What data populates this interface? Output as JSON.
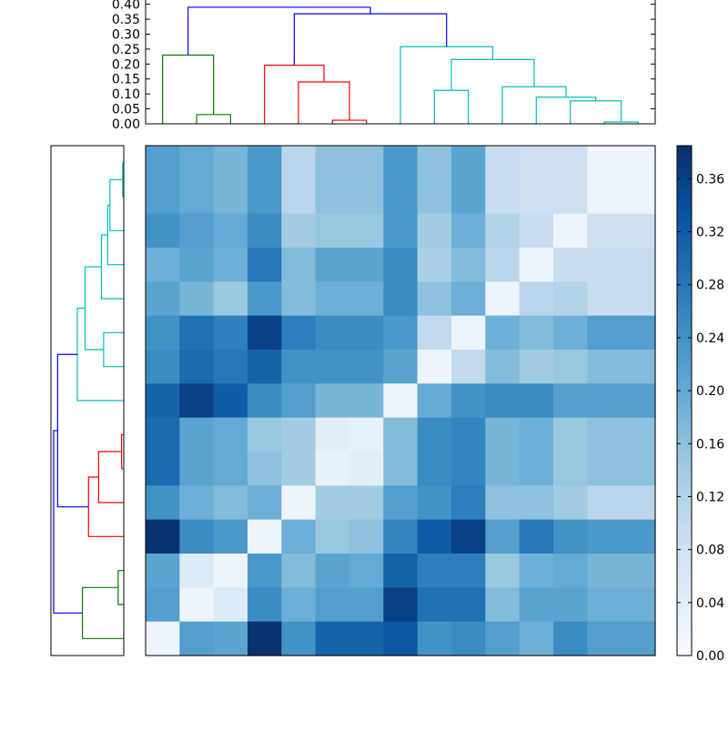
{
  "chart_data": {
    "type": "heatmap",
    "n": 15,
    "colormap": "Blues",
    "matrix": [
      [
        0.22,
        0.2,
        0.18,
        0.23,
        0.11,
        0.16,
        0.16,
        0.23,
        0.16,
        0.21,
        0.09,
        0.08,
        0.08,
        0.02,
        0.02
      ],
      [
        0.22,
        0.2,
        0.18,
        0.23,
        0.11,
        0.16,
        0.16,
        0.23,
        0.16,
        0.21,
        0.09,
        0.08,
        0.08,
        0.02,
        0.02
      ],
      [
        0.24,
        0.22,
        0.2,
        0.25,
        0.14,
        0.15,
        0.15,
        0.23,
        0.14,
        0.19,
        0.12,
        0.09,
        0.02,
        0.08,
        0.08
      ],
      [
        0.19,
        0.21,
        0.19,
        0.28,
        0.17,
        0.21,
        0.21,
        0.25,
        0.13,
        0.17,
        0.11,
        0.02,
        0.09,
        0.09,
        0.09
      ],
      [
        0.21,
        0.18,
        0.15,
        0.23,
        0.17,
        0.19,
        0.19,
        0.25,
        0.16,
        0.19,
        0.02,
        0.11,
        0.12,
        0.09,
        0.09
      ],
      [
        0.24,
        0.29,
        0.27,
        0.36,
        0.27,
        0.25,
        0.25,
        0.23,
        0.1,
        0.02,
        0.19,
        0.17,
        0.19,
        0.22,
        0.22
      ],
      [
        0.25,
        0.3,
        0.28,
        0.31,
        0.24,
        0.24,
        0.24,
        0.21,
        0.02,
        0.1,
        0.17,
        0.14,
        0.15,
        0.17,
        0.17
      ],
      [
        0.31,
        0.36,
        0.32,
        0.25,
        0.22,
        0.18,
        0.18,
        0.02,
        0.2,
        0.24,
        0.25,
        0.25,
        0.22,
        0.22,
        0.22
      ],
      [
        0.3,
        0.21,
        0.2,
        0.15,
        0.14,
        0.04,
        0.03,
        0.17,
        0.25,
        0.26,
        0.18,
        0.19,
        0.15,
        0.16,
        0.16
      ],
      [
        0.3,
        0.21,
        0.2,
        0.16,
        0.14,
        0.03,
        0.04,
        0.17,
        0.25,
        0.26,
        0.18,
        0.19,
        0.15,
        0.16,
        0.16
      ],
      [
        0.24,
        0.19,
        0.17,
        0.19,
        0.02,
        0.14,
        0.14,
        0.22,
        0.24,
        0.27,
        0.16,
        0.16,
        0.14,
        0.11,
        0.11
      ],
      [
        0.38,
        0.25,
        0.23,
        0.02,
        0.19,
        0.15,
        0.16,
        0.26,
        0.32,
        0.36,
        0.22,
        0.28,
        0.24,
        0.23,
        0.23
      ],
      [
        0.21,
        0.05,
        0.02,
        0.23,
        0.17,
        0.21,
        0.2,
        0.31,
        0.27,
        0.27,
        0.15,
        0.19,
        0.2,
        0.18,
        0.18
      ],
      [
        0.22,
        0.02,
        0.05,
        0.25,
        0.19,
        0.22,
        0.22,
        0.36,
        0.29,
        0.29,
        0.17,
        0.21,
        0.21,
        0.19,
        0.19
      ],
      [
        0.02,
        0.22,
        0.21,
        0.38,
        0.24,
        0.31,
        0.31,
        0.33,
        0.24,
        0.25,
        0.22,
        0.19,
        0.25,
        0.22,
        0.22
      ]
    ],
    "colorbar": {
      "min": 0.0,
      "max": 0.385,
      "ticks": [
        "0.00",
        "0.04",
        "0.08",
        "0.12",
        "0.16",
        "0.20",
        "0.24",
        "0.28",
        "0.32",
        "0.36"
      ]
    },
    "top_dendrogram": {
      "ylim": [
        0,
        0.405
      ],
      "yticks": [
        "0.00",
        "0.05",
        "0.10",
        "0.15",
        "0.20",
        "0.25",
        "0.30",
        "0.35",
        "0.40"
      ],
      "links": [
        {
          "left": 1.5,
          "right": 2.5,
          "h": 0.031,
          "lh": 0,
          "rh": 0,
          "color": "#008000"
        },
        {
          "left": 0.5,
          "right": 2.0,
          "h": 0.23,
          "lh": 0,
          "rh": 0.031,
          "color": "#008000"
        },
        {
          "left": 5.5,
          "right": 6.5,
          "h": 0.012,
          "lh": 0,
          "rh": 0,
          "color": "#ff0000"
        },
        {
          "left": 4.5,
          "right": 6.0,
          "h": 0.14,
          "lh": 0,
          "rh": 0.012,
          "color": "#ff0000"
        },
        {
          "left": 3.5,
          "right": 5.25,
          "h": 0.196,
          "lh": 0,
          "rh": 0.14,
          "color": "#ff0000"
        },
        {
          "left": 13.5,
          "right": 14.5,
          "h": 0.006,
          "lh": 0,
          "rh": 0,
          "color": "#00bfbf"
        },
        {
          "left": 12.5,
          "right": 14.0,
          "h": 0.077,
          "lh": 0,
          "rh": 0.006,
          "color": "#00bfbf"
        },
        {
          "left": 11.5,
          "right": 13.25,
          "h": 0.089,
          "lh": 0,
          "rh": 0.077,
          "color": "#00bfbf"
        },
        {
          "left": 10.5,
          "right": 12.375,
          "h": 0.124,
          "lh": 0,
          "rh": 0.089,
          "color": "#00bfbf"
        },
        {
          "left": 8.5,
          "right": 9.5,
          "h": 0.112,
          "lh": 0,
          "rh": 0,
          "color": "#00bfbf"
        },
        {
          "left": 9.0,
          "right": 11.4375,
          "h": 0.215,
          "lh": 0.112,
          "rh": 0.124,
          "color": "#00bfbf"
        },
        {
          "left": 7.5,
          "right": 10.21875,
          "h": 0.258,
          "lh": 0,
          "rh": 0.215,
          "color": "#00bfbf"
        },
        {
          "left": 4.375,
          "right": 8.859375,
          "h": 0.368,
          "lh": 0.196,
          "rh": 0.258,
          "color": "#0000ff"
        },
        {
          "left": 1.25,
          "right": 6.6171875,
          "h": 0.39,
          "lh": 0.23,
          "rh": 0.368,
          "color": "#0000ff"
        }
      ]
    },
    "left_dendrogram": {
      "xlim": [
        0,
        0.405
      ],
      "links": [
        {
          "left": 0.5,
          "right": 1.5,
          "h": 0.006,
          "lh": 0,
          "rh": 0,
          "color": "#00bfbf"
        },
        {
          "left": 1.0,
          "right": 2.5,
          "h": 0.077,
          "lh": 0.006,
          "rh": 0,
          "color": "#00bfbf"
        },
        {
          "left": 1.75,
          "right": 3.5,
          "h": 0.089,
          "lh": 0.077,
          "rh": 0,
          "color": "#00bfbf"
        },
        {
          "left": 2.625,
          "right": 4.5,
          "h": 0.124,
          "lh": 0.089,
          "rh": 0,
          "color": "#00bfbf"
        },
        {
          "left": 5.5,
          "right": 6.5,
          "h": 0.112,
          "lh": 0,
          "rh": 0,
          "color": "#00bfbf"
        },
        {
          "left": 3.5625,
          "right": 6.0,
          "h": 0.215,
          "lh": 0.124,
          "rh": 0.112,
          "color": "#00bfbf"
        },
        {
          "left": 4.78125,
          "right": 7.5,
          "h": 0.258,
          "lh": 0.215,
          "rh": 0,
          "color": "#00bfbf"
        },
        {
          "left": 8.5,
          "right": 9.5,
          "h": 0.012,
          "lh": 0,
          "rh": 0,
          "color": "#ff0000"
        },
        {
          "left": 9.0,
          "right": 10.5,
          "h": 0.14,
          "lh": 0.012,
          "rh": 0,
          "color": "#ff0000"
        },
        {
          "left": 9.75,
          "right": 11.5,
          "h": 0.196,
          "lh": 0.14,
          "rh": 0,
          "color": "#ff0000"
        },
        {
          "left": 6.140625,
          "right": 10.625,
          "h": 0.368,
          "lh": 0.258,
          "rh": 0.196,
          "color": "#0000ff"
        },
        {
          "left": 12.5,
          "right": 13.5,
          "h": 0.031,
          "lh": 0,
          "rh": 0,
          "color": "#008000"
        },
        {
          "left": 13.0,
          "right": 14.5,
          "h": 0.23,
          "lh": 0.031,
          "rh": 0,
          "color": "#008000"
        },
        {
          "left": 8.3828125,
          "right": 13.75,
          "h": 0.39,
          "lh": 0.368,
          "rh": 0.23,
          "color": "#0000ff"
        }
      ]
    }
  }
}
